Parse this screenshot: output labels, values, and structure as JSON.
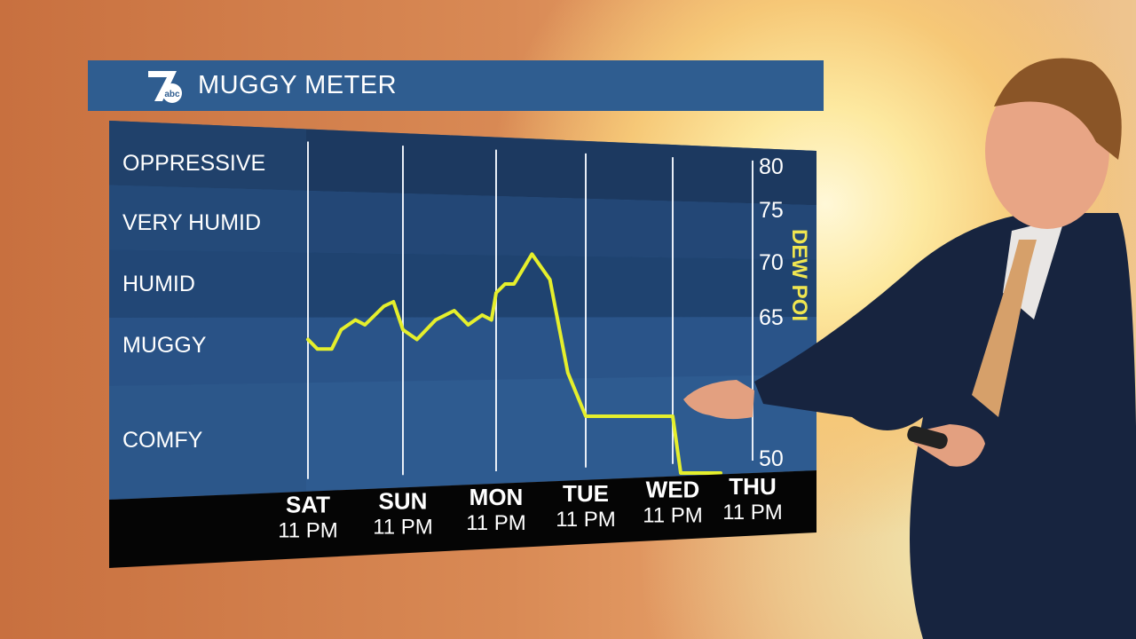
{
  "title": "MUGGY METER",
  "logo": {
    "number": "7",
    "network": "abc"
  },
  "categories": [
    {
      "label": "OPPRESSIVE"
    },
    {
      "label": "VERY HUMID"
    },
    {
      "label": "HUMID"
    },
    {
      "label": "MUGGY"
    },
    {
      "label": "COMFY"
    }
  ],
  "right_axis": {
    "label": "DEW POI",
    "ticks": [
      "80",
      "75",
      "70",
      "65",
      "50"
    ]
  },
  "x_labels": [
    {
      "day": "SAT",
      "time": "11 PM"
    },
    {
      "day": "SUN",
      "time": "11 PM"
    },
    {
      "day": "MON",
      "time": "11 PM"
    },
    {
      "day": "TUE",
      "time": "11 PM"
    },
    {
      "day": "WED",
      "time": "11 PM"
    },
    {
      "day": "THU",
      "time": "11 PM"
    }
  ],
  "colors": {
    "band_dark": "#1c3a60",
    "band_light": "#2e5a8e",
    "line": "#e5ef2c",
    "axis_text": "#f0e650"
  },
  "chart_data": {
    "type": "line",
    "title": "MUGGY METER",
    "ylabel": "DEW POI",
    "ylim": [
      48,
      82
    ],
    "ytick_labels": [
      "80",
      "75",
      "70",
      "65",
      "50"
    ],
    "categories": [
      "SAT 11 PM",
      "SUN 11 PM",
      "MON 11 PM",
      "TUE 11 PM",
      "WED 11 PM",
      "THU 11 PM"
    ],
    "series": [
      {
        "x": [
          0.0,
          0.1,
          0.25,
          0.35,
          0.5,
          0.6,
          0.8,
          0.9,
          1.0,
          1.15,
          1.35,
          1.55,
          1.7,
          1.85,
          1.95,
          2.0,
          2.1,
          2.2,
          2.4,
          2.6,
          2.8,
          3.0,
          3.5,
          4.0,
          4.1,
          4.6
        ],
        "y": [
          62.5,
          61.5,
          61.5,
          63.5,
          64.5,
          64,
          66,
          66.5,
          63.5,
          62.5,
          64.5,
          65.5,
          64,
          65,
          64.5,
          67.5,
          68.5,
          68.5,
          71.5,
          69,
          59,
          55.5,
          55.5,
          55.5,
          50,
          50
        ]
      }
    ]
  }
}
